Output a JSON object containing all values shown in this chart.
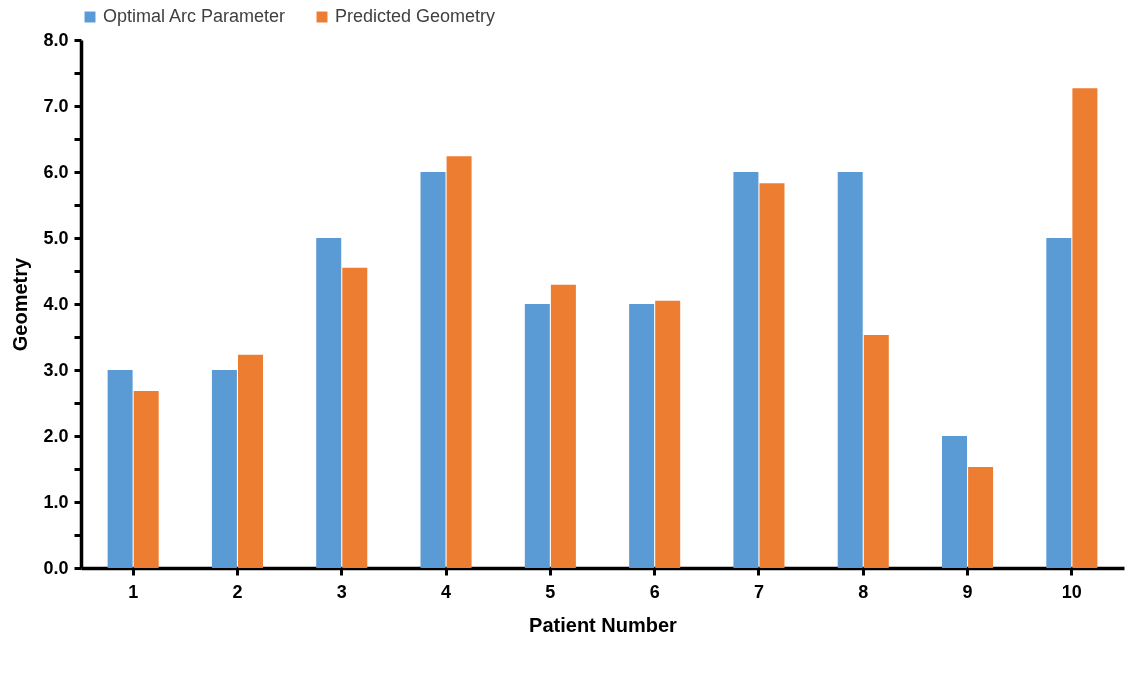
{
  "chart_data": {
    "type": "bar",
    "xlabel": "Patient Number",
    "ylabel": "Geometry",
    "categories": [
      "1",
      "2",
      "3",
      "4",
      "5",
      "6",
      "7",
      "8",
      "9",
      "10"
    ],
    "series": [
      {
        "name": "Optimal Arc Parameter",
        "color": "#5b9bd5",
        "values": [
          3,
          3,
          5,
          6,
          4,
          4,
          6,
          6,
          2,
          5
        ]
      },
      {
        "name": "Predicted Geometry",
        "color": "#ed7d31",
        "values": [
          2.68,
          3.23,
          4.55,
          6.24,
          4.29,
          4.05,
          5.83,
          3.53,
          1.53,
          7.27
        ]
      }
    ],
    "ylim": [
      0,
      8
    ],
    "yticks": [
      {
        "value": 0,
        "label": "0.0"
      },
      {
        "value": 0.5,
        "label": null
      },
      {
        "value": 1,
        "label": "1.0"
      },
      {
        "value": 1.5,
        "label": null
      },
      {
        "value": 2,
        "label": "2.0"
      },
      {
        "value": 2.5,
        "label": null
      },
      {
        "value": 3,
        "label": "3.0"
      },
      {
        "value": 3.5,
        "label": null
      },
      {
        "value": 4,
        "label": "4.0"
      },
      {
        "value": 4.5,
        "label": null
      },
      {
        "value": 5,
        "label": "5.0"
      },
      {
        "value": 5.5,
        "label": null
      },
      {
        "value": 6,
        "label": "6.0"
      },
      {
        "value": 6.5,
        "label": null
      },
      {
        "value": 7,
        "label": "7.0"
      },
      {
        "value": 7.5,
        "label": null
      },
      {
        "value": 8,
        "label": "8.0"
      }
    ],
    "grid": false,
    "legend": "top"
  }
}
